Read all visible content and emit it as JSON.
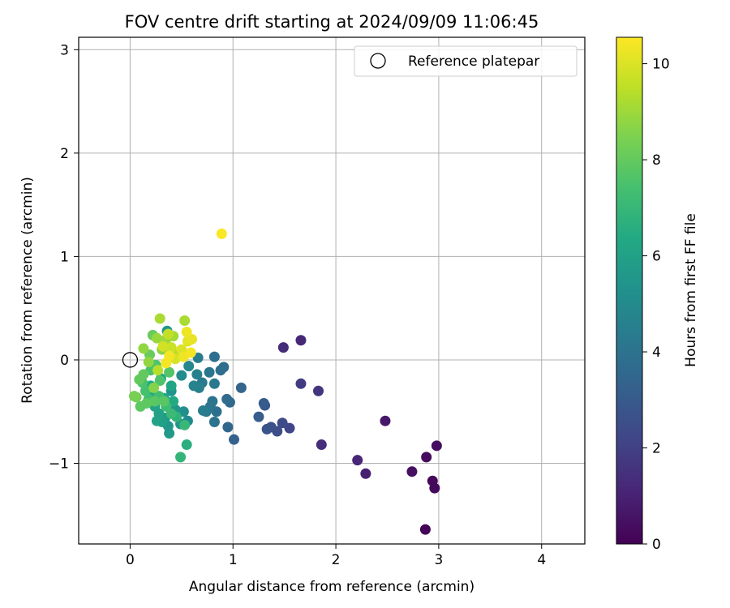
{
  "chart_data": {
    "type": "scatter",
    "title": "FOV centre drift starting at 2024/09/09 11:06:45",
    "xlabel": "Angular distance from reference (arcmin)",
    "ylabel": "Rotation from reference (arcmin)",
    "xlim": [
      -0.5,
      4.42
    ],
    "ylim": [
      -1.78,
      3.12
    ],
    "xticks": [
      0,
      1,
      2,
      3,
      4
    ],
    "yticks": [
      -1,
      0,
      1,
      2,
      3
    ],
    "xtick_labels": [
      "0",
      "1",
      "2",
      "3",
      "4"
    ],
    "ytick_labels": [
      "−1",
      "0",
      "1",
      "2",
      "3"
    ],
    "grid": true,
    "colormap": "viridis",
    "colorbar": {
      "label": "Hours from first FF file",
      "range": [
        0,
        10.55
      ],
      "ticks": [
        0,
        2,
        4,
        6,
        8,
        10
      ],
      "tick_labels": [
        "0",
        "2",
        "4",
        "6",
        "8",
        "10"
      ]
    },
    "legend": {
      "location": "top-right",
      "entries": [
        {
          "label": "Reference platepar",
          "marker": "open-circle"
        }
      ]
    },
    "reference_point": {
      "x": 0,
      "y": 0
    },
    "series": [
      {
        "points": [
          {
            "x": 2.87,
            "y": -1.64,
            "hours": 0.1
          },
          {
            "x": 2.94,
            "y": -1.17,
            "hours": 0.2
          },
          {
            "x": 2.96,
            "y": -1.24,
            "hours": 0.25
          },
          {
            "x": 2.98,
            "y": -0.83,
            "hours": 0.35
          },
          {
            "x": 2.88,
            "y": -0.94,
            "hours": 0.3
          },
          {
            "x": 2.74,
            "y": -1.08,
            "hours": 0.45
          },
          {
            "x": 2.48,
            "y": -0.59,
            "hours": 0.7
          },
          {
            "x": 2.29,
            "y": -1.1,
            "hours": 0.9
          },
          {
            "x": 2.21,
            "y": -0.97,
            "hours": 1.1
          },
          {
            "x": 1.86,
            "y": -0.82,
            "hours": 1.4
          },
          {
            "x": 1.83,
            "y": -0.3,
            "hours": 1.6
          },
          {
            "x": 1.66,
            "y": -0.23,
            "hours": 1.8
          },
          {
            "x": 1.66,
            "y": 0.19,
            "hours": 1.2
          },
          {
            "x": 1.49,
            "y": 0.12,
            "hours": 1.3
          },
          {
            "x": 1.55,
            "y": -0.66,
            "hours": 2.2
          },
          {
            "x": 1.48,
            "y": -0.61,
            "hours": 2.4
          },
          {
            "x": 1.43,
            "y": -0.69,
            "hours": 2.5
          },
          {
            "x": 1.37,
            "y": -0.65,
            "hours": 2.6
          },
          {
            "x": 1.33,
            "y": -0.67,
            "hours": 2.7
          },
          {
            "x": 1.31,
            "y": -0.44,
            "hours": 2.9
          },
          {
            "x": 1.3,
            "y": -0.42,
            "hours": 3.0
          },
          {
            "x": 1.25,
            "y": -0.55,
            "hours": 3.1
          },
          {
            "x": 1.08,
            "y": -0.27,
            "hours": 3.4
          },
          {
            "x": 1.01,
            "y": -0.77,
            "hours": 3.3
          },
          {
            "x": 0.95,
            "y": -0.65,
            "hours": 3.5
          },
          {
            "x": 0.97,
            "y": -0.41,
            "hours": 3.6
          },
          {
            "x": 0.94,
            "y": -0.38,
            "hours": 3.7
          },
          {
            "x": 0.91,
            "y": -0.07,
            "hours": 3.7
          },
          {
            "x": 0.88,
            "y": -0.1,
            "hours": 3.8
          },
          {
            "x": 0.82,
            "y": 0.03,
            "hours": 3.8
          },
          {
            "x": 0.84,
            "y": -0.5,
            "hours": 3.9
          },
          {
            "x": 0.82,
            "y": -0.6,
            "hours": 4.0
          },
          {
            "x": 0.8,
            "y": -0.4,
            "hours": 4.0
          },
          {
            "x": 0.78,
            "y": -0.45,
            "hours": 4.1
          },
          {
            "x": 0.77,
            "y": -0.12,
            "hours": 4.1
          },
          {
            "x": 0.82,
            "y": -0.23,
            "hours": 4.2
          },
          {
            "x": 0.74,
            "y": -0.5,
            "hours": 4.3
          },
          {
            "x": 0.71,
            "y": -0.49,
            "hours": 4.4
          },
          {
            "x": 0.7,
            "y": -0.22,
            "hours": 4.3
          },
          {
            "x": 0.67,
            "y": -0.27,
            "hours": 4.5
          },
          {
            "x": 0.66,
            "y": 0.02,
            "hours": 4.4
          },
          {
            "x": 0.65,
            "y": -0.14,
            "hours": 4.6
          },
          {
            "x": 0.62,
            "y": -0.25,
            "hours": 4.7
          },
          {
            "x": 0.57,
            "y": -0.06,
            "hours": 4.8
          },
          {
            "x": 0.56,
            "y": -0.59,
            "hours": 5.0
          },
          {
            "x": 0.5,
            "y": -0.15,
            "hours": 5.0
          },
          {
            "x": 0.52,
            "y": -0.5,
            "hours": 5.2
          },
          {
            "x": 0.49,
            "y": -0.62,
            "hours": 5.4
          },
          {
            "x": 0.44,
            "y": -0.48,
            "hours": 5.5
          },
          {
            "x": 0.4,
            "y": -0.3,
            "hours": 5.4
          },
          {
            "x": 0.38,
            "y": -0.71,
            "hours": 5.7
          },
          {
            "x": 0.37,
            "y": -0.64,
            "hours": 5.6
          },
          {
            "x": 0.36,
            "y": 0.28,
            "hours": 5.5
          },
          {
            "x": 0.34,
            "y": -0.56,
            "hours": 5.8
          },
          {
            "x": 0.31,
            "y": -0.6,
            "hours": 5.9
          },
          {
            "x": 0.28,
            "y": -0.52,
            "hours": 6.0
          },
          {
            "x": 0.26,
            "y": -0.59,
            "hours": 6.1
          },
          {
            "x": 0.24,
            "y": -0.45,
            "hours": 6.1
          },
          {
            "x": 0.33,
            "y": -0.37,
            "hours": 6.2
          },
          {
            "x": 0.4,
            "y": -0.25,
            "hours": 6.2
          },
          {
            "x": 0.3,
            "y": -0.18,
            "hours": 6.3
          },
          {
            "x": 0.22,
            "y": -0.36,
            "hours": 6.3
          },
          {
            "x": 0.2,
            "y": -0.25,
            "hours": 6.4
          },
          {
            "x": 0.42,
            "y": -0.4,
            "hours": 6.4
          },
          {
            "x": 0.55,
            "y": -0.82,
            "hours": 6.6
          },
          {
            "x": 0.49,
            "y": -0.94,
            "hours": 6.9
          },
          {
            "x": 0.45,
            "y": -0.55,
            "hours": 6.8
          },
          {
            "x": 0.53,
            "y": -0.63,
            "hours": 7.0
          },
          {
            "x": 0.4,
            "y": -0.52,
            "hours": 7.1
          },
          {
            "x": 0.35,
            "y": -0.45,
            "hours": 7.2
          },
          {
            "x": 0.28,
            "y": -0.35,
            "hours": 7.3
          },
          {
            "x": 0.18,
            "y": -0.38,
            "hours": 7.3
          },
          {
            "x": 0.15,
            "y": -0.3,
            "hours": 7.4
          },
          {
            "x": 0.12,
            "y": -0.22,
            "hours": 7.5
          },
          {
            "x": 0.2,
            "y": -0.1,
            "hours": 7.5
          },
          {
            "x": 0.25,
            "y": -0.05,
            "hours": 7.6
          },
          {
            "x": 0.29,
            "y": -0.2,
            "hours": 7.6
          },
          {
            "x": 0.38,
            "y": -0.12,
            "hours": 7.7
          },
          {
            "x": 0.33,
            "y": -0.4,
            "hours": 7.8
          },
          {
            "x": 0.24,
            "y": -0.4,
            "hours": 7.8
          },
          {
            "x": 0.16,
            "y": -0.42,
            "hours": 7.9
          },
          {
            "x": 0.1,
            "y": -0.45,
            "hours": 7.9
          },
          {
            "x": 0.09,
            "y": -0.19,
            "hours": 8.0
          },
          {
            "x": 0.13,
            "y": -0.14,
            "hours": 8.0
          },
          {
            "x": 0.19,
            "y": 0.05,
            "hours": 8.1
          },
          {
            "x": 0.22,
            "y": 0.24,
            "hours": 8.1
          },
          {
            "x": 0.06,
            "y": -0.36,
            "hours": 8.3
          },
          {
            "x": 0.04,
            "y": -0.35,
            "hours": 8.4
          },
          {
            "x": 0.23,
            "y": -0.27,
            "hours": 8.6
          },
          {
            "x": 0.31,
            "y": 0.1,
            "hours": 8.7
          },
          {
            "x": 0.13,
            "y": 0.11,
            "hours": 8.8
          },
          {
            "x": 0.18,
            "y": -0.02,
            "hours": 8.8
          },
          {
            "x": 0.26,
            "y": 0.21,
            "hours": 8.9
          },
          {
            "x": 0.35,
            "y": 0.2,
            "hours": 9.0
          },
          {
            "x": 0.42,
            "y": 0.23,
            "hours": 9.1
          },
          {
            "x": 0.29,
            "y": 0.4,
            "hours": 9.2
          },
          {
            "x": 0.53,
            "y": 0.38,
            "hours": 9.2
          },
          {
            "x": 0.45,
            "y": 0.05,
            "hours": 9.3
          },
          {
            "x": 0.27,
            "y": -0.1,
            "hours": 9.4
          },
          {
            "x": 0.37,
            "y": 0.25,
            "hours": 9.6
          },
          {
            "x": 0.4,
            "y": 0.12,
            "hours": 9.7
          },
          {
            "x": 0.32,
            "y": 0.13,
            "hours": 9.8
          },
          {
            "x": 0.44,
            "y": 0.01,
            "hours": 9.9
          },
          {
            "x": 0.5,
            "y": 0.1,
            "hours": 10.0
          },
          {
            "x": 0.56,
            "y": 0.18,
            "hours": 10.1
          },
          {
            "x": 0.6,
            "y": 0.2,
            "hours": 10.2
          },
          {
            "x": 0.55,
            "y": 0.27,
            "hours": 10.3
          },
          {
            "x": 0.52,
            "y": 0.03,
            "hours": 10.3
          },
          {
            "x": 0.59,
            "y": 0.07,
            "hours": 10.4
          },
          {
            "x": 0.38,
            "y": 0.04,
            "hours": 10.4
          },
          {
            "x": 0.35,
            "y": -0.03,
            "hours": 10.4
          },
          {
            "x": 0.89,
            "y": 1.22,
            "hours": 10.5
          }
        ]
      }
    ]
  }
}
